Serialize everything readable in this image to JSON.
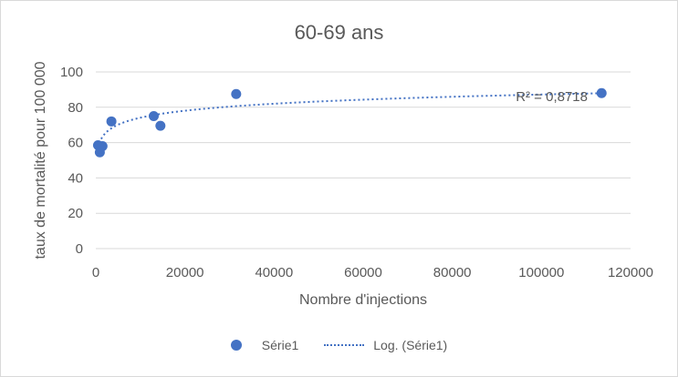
{
  "chart_data": {
    "type": "scatter",
    "title": "60-69 ans",
    "xlabel": "Nombre d'injections",
    "ylabel": "taux de mortalité pour 100 000",
    "xlim": [
      0,
      120000
    ],
    "ylim": [
      0,
      100
    ],
    "xticks": [
      "0",
      "20000",
      "40000",
      "60000",
      "80000",
      "100000",
      "120000"
    ],
    "yticks": [
      "0",
      "20",
      "40",
      "60",
      "80",
      "100"
    ],
    "grid": true,
    "legend_position": "bottom",
    "series": [
      {
        "name": "Série1",
        "color": "#4472c4",
        "points": [
          {
            "x": 500,
            "y": 58.5
          },
          {
            "x": 900,
            "y": 54.5
          },
          {
            "x": 1500,
            "y": 58
          },
          {
            "x": 3500,
            "y": 72
          },
          {
            "x": 13000,
            "y": 75
          },
          {
            "x": 14500,
            "y": 69.5
          },
          {
            "x": 31500,
            "y": 87.5
          },
          {
            "x": 113500,
            "y": 88
          }
        ]
      }
    ],
    "trendline": {
      "name": "Log. (Série1)",
      "kind": "logarithmic",
      "a": 5.7,
      "b": 21.6,
      "x_start": 800,
      "x_end": 113500,
      "r2_label": "R² = 0,8718"
    }
  }
}
